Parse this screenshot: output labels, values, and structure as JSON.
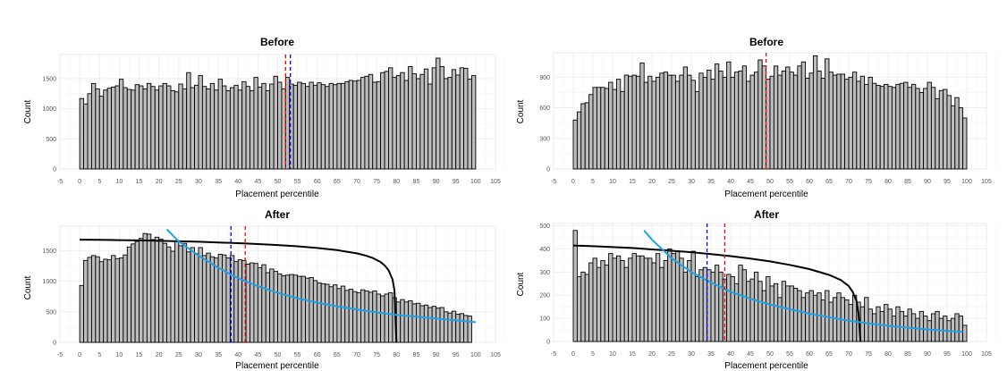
{
  "chart_data": [
    {
      "type": "bar",
      "title": "Before",
      "xlabel": "Placement percentile",
      "ylabel": "Count",
      "xlim": [
        -5,
        105
      ],
      "ylim": [
        0,
        1900
      ],
      "xticks": [
        -5,
        0,
        5,
        10,
        15,
        20,
        25,
        30,
        35,
        40,
        45,
        50,
        55,
        60,
        65,
        70,
        75,
        80,
        85,
        90,
        95,
        100,
        105
      ],
      "xtick_labels": [
        "-5",
        "0",
        "5",
        "10",
        "15",
        "20",
        "25",
        "30",
        "35",
        "40",
        "45",
        "50",
        "55",
        "60",
        "65",
        "70",
        "75",
        "80",
        "85",
        "90",
        "95",
        "100",
        "105"
      ],
      "yticks": [
        0,
        500,
        1000,
        1500
      ],
      "ytick_labels": [
        "0",
        "500",
        "1000",
        "1500"
      ],
      "grid": true,
      "values": [
        1170,
        1080,
        1250,
        1420,
        1330,
        1210,
        1310,
        1340,
        1360,
        1380,
        1490,
        1350,
        1320,
        1310,
        1400,
        1380,
        1330,
        1420,
        1370,
        1310,
        1380,
        1420,
        1380,
        1300,
        1280,
        1410,
        1330,
        1600,
        1350,
        1390,
        1550,
        1370,
        1330,
        1420,
        1310,
        1490,
        1380,
        1300,
        1350,
        1390,
        1310,
        1450,
        1370,
        1300,
        1520,
        1360,
        1420,
        1300,
        1410,
        1540,
        1440,
        1330,
        1520,
        1410,
        1390,
        1440,
        1420,
        1370,
        1440,
        1390,
        1430,
        1400,
        1370,
        1420,
        1400,
        1420,
        1420,
        1450,
        1470,
        1460,
        1470,
        1520,
        1540,
        1570,
        1440,
        1450,
        1600,
        1620,
        1680,
        1520,
        1550,
        1600,
        1470,
        1700,
        1580,
        1500,
        1570,
        1660,
        1410,
        1680,
        1840,
        1700,
        1500,
        1520,
        1650,
        1560,
        1680,
        1670,
        1490,
        1550
      ],
      "vlines": [
        {
          "x": 52,
          "color": "#ff0000"
        },
        {
          "x": 53.2,
          "color": "#0000ff"
        }
      ]
    },
    {
      "type": "bar",
      "title": "Before",
      "xlabel": "Placement percentile",
      "ylabel": "Count",
      "xlim": [
        -5,
        105
      ],
      "ylim": [
        0,
        1140
      ],
      "xticks": [
        -5,
        0,
        5,
        10,
        15,
        20,
        25,
        30,
        35,
        40,
        45,
        50,
        55,
        60,
        65,
        70,
        75,
        80,
        85,
        90,
        95,
        100,
        105
      ],
      "xtick_labels": [
        "-5",
        "0",
        "5",
        "10",
        "15",
        "20",
        "25",
        "30",
        "35",
        "40",
        "45",
        "50",
        "55",
        "60",
        "65",
        "70",
        "75",
        "80",
        "85",
        "90",
        "95",
        "100",
        "105"
      ],
      "yticks": [
        0,
        300,
        600,
        900
      ],
      "ytick_labels": [
        "0",
        "300",
        "600",
        "900"
      ],
      "grid": true,
      "values": [
        480,
        560,
        640,
        650,
        730,
        800,
        800,
        800,
        790,
        850,
        780,
        880,
        760,
        920,
        910,
        920,
        910,
        1040,
        850,
        910,
        860,
        900,
        940,
        950,
        920,
        920,
        860,
        920,
        1000,
        920,
        870,
        760,
        940,
        900,
        970,
        880,
        1030,
        960,
        900,
        1050,
        900,
        950,
        960,
        1010,
        860,
        920,
        950,
        1070,
        1010,
        880,
        910,
        1010,
        920,
        960,
        1000,
        950,
        920,
        1010,
        1050,
        890,
        940,
        1110,
        960,
        890,
        1080,
        950,
        920,
        930,
        930,
        880,
        900,
        950,
        860,
        910,
        830,
        900,
        840,
        820,
        810,
        830,
        810,
        800,
        830,
        840,
        850,
        800,
        830,
        790,
        750,
        790,
        850,
        800,
        690,
        770,
        780,
        720,
        620,
        700,
        600,
        500
      ],
      "vlines": [
        {
          "x": 49,
          "color": "#ff0000"
        }
      ]
    },
    {
      "type": "bar",
      "title": "After",
      "xlabel": "Placement percentile",
      "ylabel": "Count",
      "xlim": [
        -5,
        105
      ],
      "ylim": [
        0,
        1900
      ],
      "xticks": [
        -5,
        0,
        5,
        10,
        15,
        20,
        25,
        30,
        35,
        40,
        45,
        50,
        55,
        60,
        65,
        70,
        75,
        80,
        85,
        90,
        95,
        100,
        105
      ],
      "xtick_labels": [
        "-5",
        "0",
        "5",
        "10",
        "15",
        "20",
        "25",
        "30",
        "35",
        "40",
        "45",
        "50",
        "55",
        "60",
        "65",
        "70",
        "75",
        "80",
        "85",
        "90",
        "95",
        "100",
        "105"
      ],
      "yticks": [
        0,
        500,
        1000,
        1500
      ],
      "ytick_labels": [
        "0",
        "500",
        "1000",
        "1500"
      ],
      "grid": true,
      "values": [
        930,
        1340,
        1390,
        1420,
        1400,
        1320,
        1360,
        1350,
        1420,
        1370,
        1380,
        1430,
        1560,
        1610,
        1650,
        1700,
        1780,
        1770,
        1680,
        1720,
        1690,
        1620,
        1560,
        1490,
        1660,
        1580,
        1620,
        1480,
        1550,
        1450,
        1550,
        1420,
        1460,
        1400,
        1380,
        1440,
        1430,
        1380,
        1420,
        1320,
        1350,
        1340,
        1280,
        1300,
        1290,
        1220,
        1270,
        1140,
        1200,
        1160,
        1120,
        1090,
        1100,
        1110,
        1100,
        1080,
        1080,
        1050,
        1060,
        1010,
        970,
        960,
        950,
        910,
        940,
        880,
        920,
        850,
        870,
        830,
        810,
        860,
        840,
        820,
        840,
        790,
        760,
        790,
        810,
        730,
        660,
        700,
        660,
        680,
        630,
        640,
        600,
        610,
        570,
        590,
        560,
        570,
        500,
        480,
        510,
        460,
        470,
        440,
        430
      ],
      "vlines": [
        {
          "x": 38.2,
          "color": "#0000ff"
        },
        {
          "x": 41.8,
          "color": "#ff0000"
        }
      ],
      "curves": [
        {
          "color": "#000000",
          "x": [
            0,
            5,
            10,
            15,
            20,
            25,
            30,
            35,
            40,
            45,
            50,
            55,
            60,
            65,
            70,
            72,
            74,
            76,
            77,
            78,
            79,
            79.5,
            80
          ],
          "y": [
            1680,
            1676,
            1672,
            1667,
            1661,
            1653,
            1645,
            1634,
            1622,
            1608,
            1591,
            1571,
            1544,
            1508,
            1455,
            1423,
            1380,
            1314,
            1260,
            1180,
            1030,
            850,
            0
          ]
        },
        {
          "color": "#1aa3e8",
          "x": [
            22,
            25,
            30,
            35,
            40,
            45,
            50,
            55,
            60,
            65,
            70,
            75,
            80,
            85,
            90,
            95,
            100
          ],
          "y": [
            1850,
            1650,
            1420,
            1220,
            1050,
            920,
            810,
            720,
            650,
            590,
            540,
            490,
            450,
            420,
            390,
            360,
            330
          ]
        }
      ]
    },
    {
      "type": "bar",
      "title": "After",
      "xlabel": "Placement percentile",
      "ylabel": "Count",
      "xlim": [
        -5,
        105
      ],
      "ylim": [
        0,
        510
      ],
      "xticks": [
        -5,
        0,
        5,
        10,
        15,
        20,
        25,
        30,
        35,
        40,
        45,
        50,
        55,
        60,
        65,
        70,
        75,
        80,
        85,
        90,
        95,
        100,
        105
      ],
      "xtick_labels": [
        "-5",
        "0",
        "5",
        "10",
        "15",
        "20",
        "25",
        "30",
        "35",
        "40",
        "45",
        "50",
        "55",
        "60",
        "65",
        "70",
        "75",
        "80",
        "85",
        "90",
        "95",
        "100",
        "105"
      ],
      "yticks": [
        0,
        100,
        200,
        300,
        400,
        500
      ],
      "ytick_labels": [
        "0",
        "100",
        "200",
        "300",
        "400",
        "500"
      ],
      "grid": true,
      "values": [
        480,
        280,
        300,
        290,
        340,
        360,
        320,
        350,
        330,
        380,
        360,
        370,
        350,
        320,
        360,
        380,
        370,
        370,
        360,
        360,
        340,
        380,
        320,
        350,
        400,
        380,
        390,
        360,
        300,
        350,
        390,
        280,
        310,
        320,
        310,
        300,
        330,
        300,
        270,
        290,
        280,
        250,
        330,
        310,
        260,
        270,
        300,
        260,
        220,
        280,
        240,
        250,
        190,
        260,
        240,
        240,
        230,
        220,
        190,
        210,
        220,
        200,
        210,
        180,
        220,
        170,
        190,
        210,
        190,
        180,
        160,
        200,
        170,
        150,
        190,
        140,
        120,
        150,
        130,
        160,
        140,
        110,
        150,
        130,
        110,
        140,
        120,
        100,
        130,
        110,
        90,
        120,
        130,
        100,
        110,
        90,
        100,
        120,
        110,
        70
      ],
      "vlines": [
        {
          "x": 34,
          "color": "#0000ff"
        },
        {
          "x": 38.5,
          "color": "#ff0000"
        }
      ],
      "curves": [
        {
          "color": "#000000",
          "x": [
            0,
            5,
            10,
            15,
            20,
            25,
            30,
            35,
            40,
            45,
            50,
            55,
            60,
            65,
            68,
            70,
            71,
            72,
            72.5,
            73
          ],
          "y": [
            415,
            412,
            408,
            404,
            398,
            392,
            386,
            378,
            369,
            358,
            346,
            331,
            313,
            288,
            266,
            240,
            215,
            175,
            120,
            0
          ]
        },
        {
          "color": "#1aa3e8",
          "x": [
            18,
            20,
            25,
            30,
            35,
            40,
            45,
            50,
            55,
            60,
            65,
            70,
            75,
            80,
            85,
            90,
            95,
            99
          ],
          "y": [
            480,
            440,
            360,
            300,
            255,
            215,
            185,
            160,
            140,
            120,
            105,
            90,
            78,
            68,
            60,
            52,
            46,
            42
          ]
        }
      ]
    }
  ]
}
